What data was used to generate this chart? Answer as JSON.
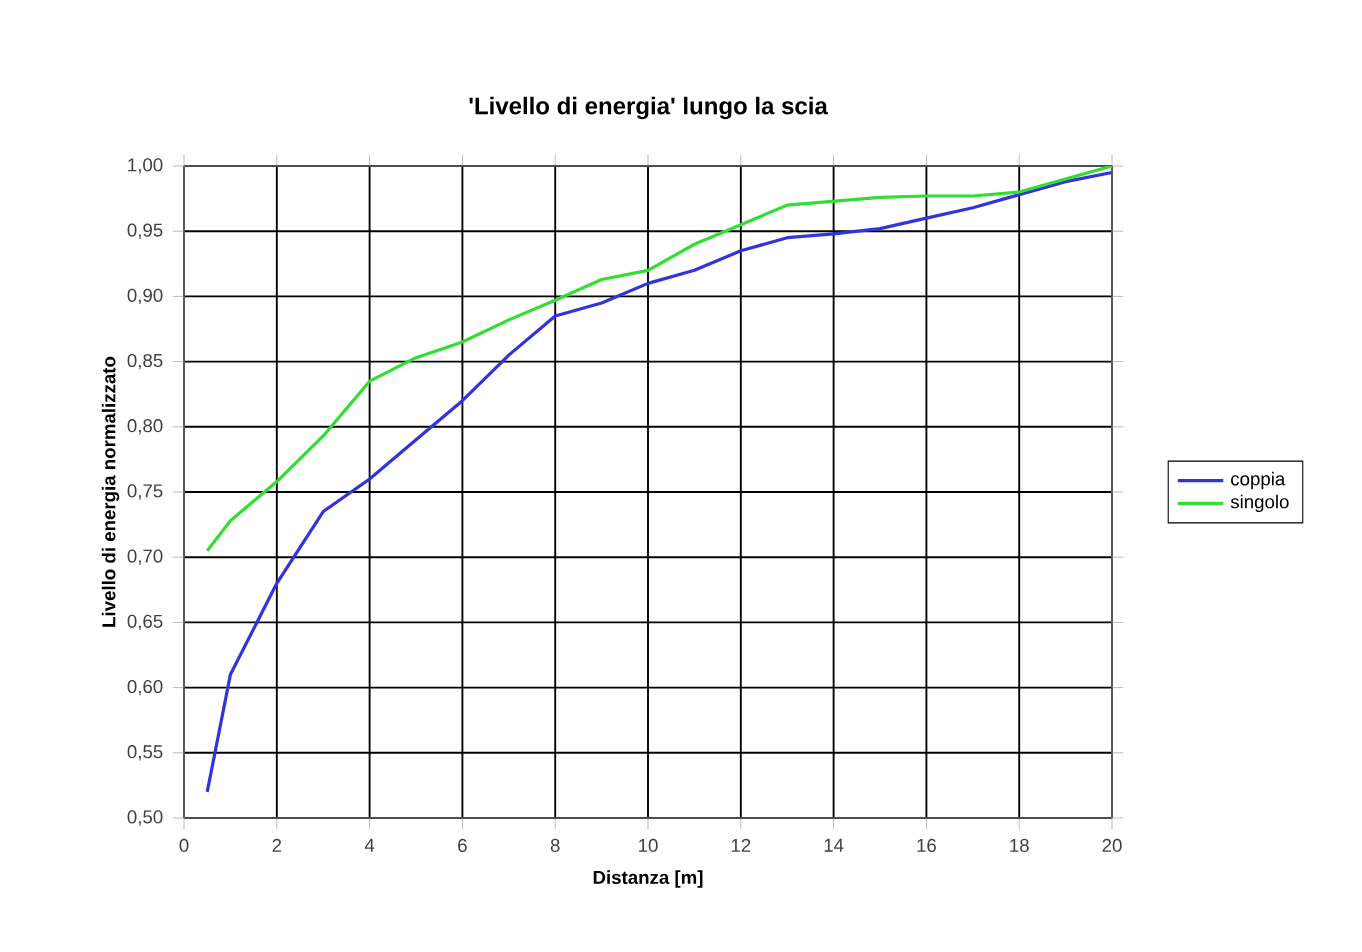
{
  "chart_data": {
    "type": "line",
    "title": "'Livello di energia' lungo la scia",
    "xlabel": "Distanza [m]",
    "ylabel": "Livello di energia  normalizzato",
    "x": [
      0.5,
      1,
      2,
      3,
      4,
      5,
      6,
      7,
      8,
      9,
      10,
      11,
      12,
      13,
      14,
      15,
      16,
      17,
      18,
      19,
      20
    ],
    "series": [
      {
        "name": "coppia",
        "color": "#3333dd",
        "values": [
          0.52,
          0.61,
          0.68,
          0.735,
          0.76,
          0.79,
          0.82,
          0.855,
          0.885,
          0.895,
          0.91,
          0.92,
          0.935,
          0.945,
          0.948,
          0.952,
          0.96,
          0.968,
          0.978,
          0.988,
          0.995
        ]
      },
      {
        "name": "singolo",
        "color": "#33dd33",
        "values": [
          0.705,
          0.728,
          0.758,
          0.793,
          0.835,
          0.853,
          0.865,
          0.882,
          0.897,
          0.913,
          0.92,
          0.94,
          0.955,
          0.97,
          0.973,
          0.976,
          0.977,
          0.977,
          0.98,
          0.99,
          1.0
        ]
      }
    ],
    "xlim": [
      0,
      20
    ],
    "ylim": [
      0.5,
      1.0
    ],
    "xticks": [
      0,
      2,
      4,
      6,
      8,
      10,
      12,
      14,
      16,
      18,
      20
    ],
    "yticks": [
      {
        "value": 0.5,
        "label": "0,50"
      },
      {
        "value": 0.55,
        "label": "0,55"
      },
      {
        "value": 0.6,
        "label": "0,60"
      },
      {
        "value": 0.65,
        "label": "0,65"
      },
      {
        "value": 0.7,
        "label": "0,70"
      },
      {
        "value": 0.75,
        "label": "0,75"
      },
      {
        "value": 0.8,
        "label": "0,80"
      },
      {
        "value": 0.85,
        "label": "0,85"
      },
      {
        "value": 0.9,
        "label": "0,90"
      },
      {
        "value": 0.95,
        "label": "0,95"
      },
      {
        "value": 1.0,
        "label": "1,00"
      }
    ],
    "grid": true,
    "legend": "right",
    "marker": "none",
    "line_style": "solid"
  }
}
